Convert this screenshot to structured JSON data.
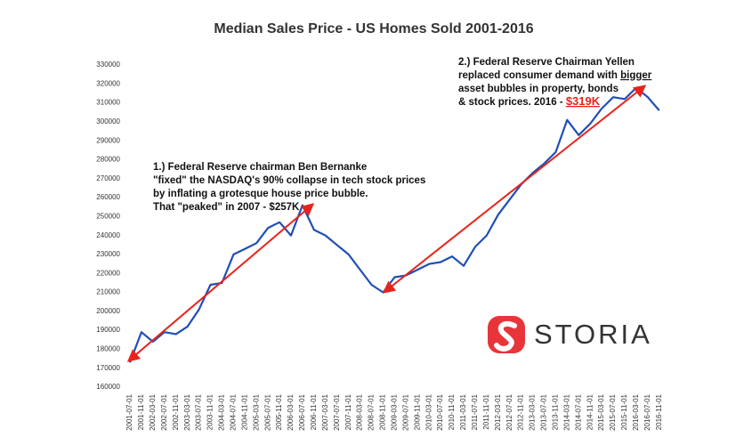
{
  "chart_data": {
    "type": "line",
    "title": "Median Sales Price - US Homes Sold  2001-2016",
    "categories": [
      "2001-07-01",
      "2001-11-01",
      "2002-03-01",
      "2002-07-01",
      "2002-11-01",
      "2003-03-01",
      "2003-07-01",
      "2003-11-01",
      "2004-03-01",
      "2004-07-01",
      "2004-11-01",
      "2005-03-01",
      "2005-07-01",
      "2005-11-01",
      "2006-03-01",
      "2006-07-01",
      "2006-11-01",
      "2007-03-01",
      "2007-07-01",
      "2007-11-01",
      "2008-03-01",
      "2008-07-01",
      "2008-11-01",
      "2009-03-01",
      "2009-07-01",
      "2009-11-01",
      "2010-03-01",
      "2010-07-01",
      "2010-11-01",
      "2011-03-01",
      "2011-07-01",
      "2011-11-01",
      "2012-03-01",
      "2012-07-01",
      "2012-11-01",
      "2013-03-01",
      "2013-07-01",
      "2013-11-01",
      "2014-03-01",
      "2014-07-01",
      "2014-11-01",
      "2015-03-01",
      "2015-07-01",
      "2015-11-01",
      "2016-03-01",
      "2016-07-01",
      "2016-11-01"
    ],
    "series": [
      {
        "name": "Median Sales Price",
        "color": "#1f4fb4",
        "values": [
          173000,
          189000,
          184000,
          189000,
          188000,
          192000,
          201000,
          214000,
          215000,
          230000,
          233000,
          236000,
          244000,
          247000,
          240000,
          256000,
          243000,
          240000,
          235000,
          230000,
          222000,
          214000,
          210000,
          218000,
          219000,
          222000,
          225000,
          226000,
          229000,
          224000,
          234000,
          240000,
          251000,
          259000,
          267000,
          273000,
          278000,
          284000,
          301000,
          293000,
          299000,
          307000,
          313000,
          312000,
          318000,
          313000,
          306000
        ]
      }
    ],
    "ylim": [
      160000,
      330000
    ],
    "yticks": [
      160000,
      170000,
      180000,
      190000,
      200000,
      210000,
      220000,
      230000,
      240000,
      250000,
      260000,
      270000,
      280000,
      290000,
      300000,
      310000,
      320000,
      330000
    ],
    "annotations": [
      {
        "lines": [
          [
            "1.) Federal Reserve chairman Ben Bernanke"
          ],
          [
            "\"fixed\" the NASDAQ's 90% collapse in tech stock prices"
          ],
          [
            "by inflating a grotesque house price bubble."
          ],
          [
            "That \"peaked\" in 2007 - $257K"
          ]
        ]
      },
      {
        "lines": [
          [
            "2.) Federal Reserve Chairman Yellen"
          ],
          [
            "replaced consumer demand with ",
            "bigger"
          ],
          [
            "asset bubbles in property, bonds"
          ],
          [
            "& stock prices. 2016 - ",
            "$319K"
          ]
        ]
      }
    ],
    "logo": "STORIA"
  }
}
